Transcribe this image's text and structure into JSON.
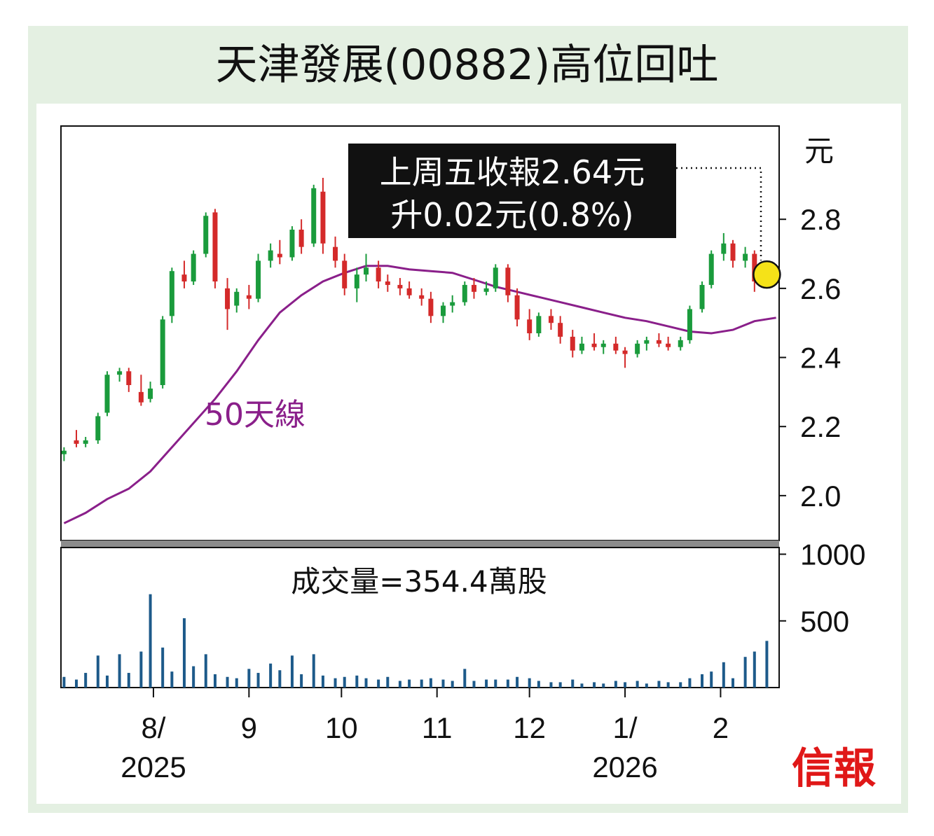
{
  "title": "天津發展(00882)高位回吐",
  "annotation": {
    "line1": "上周五收報2.64元",
    "line2": "升0.02元(0.8%)"
  },
  "ma_label": "50天線",
  "volume_label": "成交量=354.4萬股",
  "price_unit": "元",
  "brand": "信報",
  "colors": {
    "up": "#1a9b3c",
    "down": "#d42a2a",
    "ma": "#8a1f8a",
    "volume": "#1d5a8a",
    "highlight": "#f5e218",
    "background": "#e4f0e2"
  },
  "chart_data": [
    {
      "type": "candlestick",
      "ylabel": "元",
      "yticks": [
        "2.0",
        "2.2",
        "2.4",
        "2.6",
        "2.8"
      ],
      "ylim": [
        1.87,
        3.07
      ],
      "last_close": 2.64,
      "series": [
        {
          "name": "50天線",
          "points": [
            [
              "2025-07-03",
              1.92
            ],
            [
              "2025-07-10",
              1.95
            ],
            [
              "2025-07-17",
              1.99
            ],
            [
              "2025-07-24",
              2.02
            ],
            [
              "2025-07-31",
              2.07
            ],
            [
              "2025-08-07",
              2.14
            ],
            [
              "2025-08-14",
              2.21
            ],
            [
              "2025-08-21",
              2.28
            ],
            [
              "2025-08-28",
              2.36
            ],
            [
              "2025-09-04",
              2.45
            ],
            [
              "2025-09-11",
              2.53
            ],
            [
              "2025-09-18",
              2.58
            ],
            [
              "2025-09-25",
              2.62
            ],
            [
              "2025-10-02",
              2.645
            ],
            [
              "2025-10-09",
              2.665
            ],
            [
              "2025-10-16",
              2.665
            ],
            [
              "2025-10-23",
              2.655
            ],
            [
              "2025-10-30",
              2.65
            ],
            [
              "2025-11-06",
              2.645
            ],
            [
              "2025-11-13",
              2.625
            ],
            [
              "2025-11-20",
              2.605
            ],
            [
              "2025-11-27",
              2.59
            ],
            [
              "2025-12-04",
              2.575
            ],
            [
              "2025-12-11",
              2.56
            ],
            [
              "2025-12-18",
              2.545
            ],
            [
              "2025-12-25",
              2.53
            ],
            [
              "2026-01-01",
              2.515
            ],
            [
              "2026-01-08",
              2.505
            ],
            [
              "2026-01-15",
              2.49
            ],
            [
              "2026-01-22",
              2.475
            ],
            [
              "2026-01-29",
              2.47
            ],
            [
              "2026-02-05",
              2.48
            ],
            [
              "2026-02-12",
              2.505
            ],
            [
              "2026-02-19",
              2.515
            ]
          ]
        },
        {
          "name": "price",
          "candles": [
            [
              "2025-07-03",
              2.12,
              2.14,
              2.1,
              2.13
            ],
            [
              "2025-07-07",
              2.16,
              2.19,
              2.14,
              2.15
            ],
            [
              "2025-07-10",
              2.15,
              2.17,
              2.14,
              2.16
            ],
            [
              "2025-07-14",
              2.16,
              2.24,
              2.15,
              2.23
            ],
            [
              "2025-07-17",
              2.24,
              2.36,
              2.23,
              2.35
            ],
            [
              "2025-07-21",
              2.35,
              2.37,
              2.33,
              2.36
            ],
            [
              "2025-07-24",
              2.36,
              2.37,
              2.3,
              2.32
            ],
            [
              "2025-07-28",
              2.3,
              2.35,
              2.26,
              2.27
            ],
            [
              "2025-07-31",
              2.28,
              2.33,
              2.27,
              2.31
            ],
            [
              "2025-08-04",
              2.32,
              2.52,
              2.31,
              2.51
            ],
            [
              "2025-08-07",
              2.52,
              2.66,
              2.5,
              2.65
            ],
            [
              "2025-08-11",
              2.64,
              2.68,
              2.6,
              2.62
            ],
            [
              "2025-08-14",
              2.62,
              2.71,
              2.61,
              2.7
            ],
            [
              "2025-08-18",
              2.7,
              2.82,
              2.69,
              2.81
            ],
            [
              "2025-08-21",
              2.82,
              2.83,
              2.6,
              2.62
            ],
            [
              "2025-08-25",
              2.6,
              2.63,
              2.48,
              2.54
            ],
            [
              "2025-08-28",
              2.55,
              2.6,
              2.53,
              2.59
            ],
            [
              "2025-09-01",
              2.58,
              2.61,
              2.54,
              2.57
            ],
            [
              "2025-09-04",
              2.57,
              2.7,
              2.56,
              2.68
            ],
            [
              "2025-09-08",
              2.68,
              2.73,
              2.66,
              2.71
            ],
            [
              "2025-09-11",
              2.7,
              2.74,
              2.67,
              2.69
            ],
            [
              "2025-09-15",
              2.69,
              2.78,
              2.68,
              2.77
            ],
            [
              "2025-09-18",
              2.77,
              2.8,
              2.7,
              2.72
            ],
            [
              "2025-09-22",
              2.73,
              2.9,
              2.72,
              2.89
            ],
            [
              "2025-09-25",
              2.88,
              2.92,
              2.7,
              2.73
            ],
            [
              "2025-09-29",
              2.72,
              2.75,
              2.66,
              2.68
            ],
            [
              "2025-10-02",
              2.68,
              2.7,
              2.58,
              2.6
            ],
            [
              "2025-10-06",
              2.6,
              2.66,
              2.56,
              2.64
            ],
            [
              "2025-10-09",
              2.64,
              2.7,
              2.62,
              2.66
            ],
            [
              "2025-10-13",
              2.66,
              2.68,
              2.6,
              2.62
            ],
            [
              "2025-10-16",
              2.62,
              2.64,
              2.59,
              2.61
            ],
            [
              "2025-10-20",
              2.61,
              2.63,
              2.58,
              2.6
            ],
            [
              "2025-10-23",
              2.6,
              2.62,
              2.57,
              2.58
            ],
            [
              "2025-10-27",
              2.58,
              2.6,
              2.55,
              2.57
            ],
            [
              "2025-10-30",
              2.57,
              2.59,
              2.5,
              2.52
            ],
            [
              "2025-11-03",
              2.52,
              2.56,
              2.5,
              2.55
            ],
            [
              "2025-11-06",
              2.55,
              2.58,
              2.53,
              2.56
            ],
            [
              "2025-11-10",
              2.56,
              2.62,
              2.55,
              2.61
            ],
            [
              "2025-11-13",
              2.61,
              2.63,
              2.57,
              2.59
            ],
            [
              "2025-11-17",
              2.59,
              2.62,
              2.58,
              2.6
            ],
            [
              "2025-11-20",
              2.6,
              2.67,
              2.59,
              2.66
            ],
            [
              "2025-11-24",
              2.66,
              2.67,
              2.56,
              2.58
            ],
            [
              "2025-11-27",
              2.58,
              2.6,
              2.49,
              2.51
            ],
            [
              "2025-12-01",
              2.51,
              2.54,
              2.45,
              2.47
            ],
            [
              "2025-12-04",
              2.47,
              2.53,
              2.46,
              2.52
            ],
            [
              "2025-12-08",
              2.52,
              2.54,
              2.48,
              2.5
            ],
            [
              "2025-12-11",
              2.5,
              2.52,
              2.44,
              2.46
            ],
            [
              "2025-12-15",
              2.46,
              2.48,
              2.4,
              2.42
            ],
            [
              "2025-12-18",
              2.42,
              2.46,
              2.41,
              2.44
            ],
            [
              "2025-12-22",
              2.44,
              2.47,
              2.42,
              2.43
            ],
            [
              "2025-12-25",
              2.43,
              2.45,
              2.41,
              2.44
            ],
            [
              "2025-12-29",
              2.44,
              2.46,
              2.41,
              2.42
            ],
            [
              "2026-01-01",
              2.42,
              2.43,
              2.37,
              2.41
            ],
            [
              "2026-01-05",
              2.41,
              2.45,
              2.4,
              2.44
            ],
            [
              "2026-01-08",
              2.44,
              2.46,
              2.42,
              2.45
            ],
            [
              "2026-01-12",
              2.45,
              2.47,
              2.43,
              2.44
            ],
            [
              "2026-01-15",
              2.44,
              2.46,
              2.42,
              2.43
            ],
            [
              "2026-01-19",
              2.43,
              2.46,
              2.42,
              2.45
            ],
            [
              "2026-01-22",
              2.45,
              2.55,
              2.44,
              2.54
            ],
            [
              "2026-01-26",
              2.54,
              2.62,
              2.53,
              2.61
            ],
            [
              "2026-01-29",
              2.61,
              2.71,
              2.6,
              2.7
            ],
            [
              "2026-02-02",
              2.7,
              2.76,
              2.68,
              2.73
            ],
            [
              "2026-02-05",
              2.73,
              2.74,
              2.66,
              2.68
            ],
            [
              "2026-02-09",
              2.68,
              2.72,
              2.66,
              2.7
            ],
            [
              "2026-02-12",
              2.7,
              2.71,
              2.59,
              2.62
            ],
            [
              "2026-02-16",
              2.62,
              2.66,
              2.61,
              2.64
            ]
          ]
        }
      ]
    },
    {
      "type": "bar",
      "title": "成交量=354.4萬股",
      "yticks": [
        "500",
        "1000"
      ],
      "ylim": [
        0,
        1050
      ],
      "last_volume": 354.4,
      "x": [
        "2025-07-03",
        "2025-07-07",
        "2025-07-10",
        "2025-07-14",
        "2025-07-17",
        "2025-07-21",
        "2025-07-24",
        "2025-07-28",
        "2025-07-31",
        "2025-08-04",
        "2025-08-07",
        "2025-08-11",
        "2025-08-14",
        "2025-08-18",
        "2025-08-21",
        "2025-08-25",
        "2025-08-28",
        "2025-09-01",
        "2025-09-04",
        "2025-09-08",
        "2025-09-11",
        "2025-09-15",
        "2025-09-18",
        "2025-09-22",
        "2025-09-25",
        "2025-09-29",
        "2025-10-02",
        "2025-10-06",
        "2025-10-09",
        "2025-10-13",
        "2025-10-16",
        "2025-10-20",
        "2025-10-23",
        "2025-10-27",
        "2025-10-30",
        "2025-11-03",
        "2025-11-06",
        "2025-11-10",
        "2025-11-13",
        "2025-11-17",
        "2025-11-20",
        "2025-11-24",
        "2025-11-27",
        "2025-12-01",
        "2025-12-04",
        "2025-12-08",
        "2025-12-11",
        "2025-12-15",
        "2025-12-18",
        "2025-12-22",
        "2025-12-25",
        "2025-12-29",
        "2026-01-01",
        "2026-01-05",
        "2026-01-08",
        "2026-01-12",
        "2026-01-15",
        "2026-01-19",
        "2026-01-22",
        "2026-01-26",
        "2026-01-29",
        "2026-02-02",
        "2026-02-05",
        "2026-02-09",
        "2026-02-12",
        "2026-02-16"
      ],
      "values": [
        80,
        60,
        110,
        240,
        90,
        250,
        110,
        270,
        700,
        300,
        120,
        520,
        160,
        250,
        100,
        80,
        70,
        140,
        110,
        180,
        130,
        240,
        100,
        250,
        90,
        70,
        80,
        90,
        70,
        60,
        80,
        50,
        60,
        60,
        70,
        60,
        50,
        140,
        50,
        60,
        60,
        60,
        80,
        70,
        50,
        40,
        40,
        60,
        30,
        40,
        30,
        50,
        40,
        50,
        30,
        50,
        40,
        40,
        70,
        100,
        120,
        190,
        70,
        230,
        270,
        350
      ]
    }
  ],
  "x_axis": {
    "ticks": [
      {
        "label": "8/",
        "date": "2025-08-01"
      },
      {
        "label": "9",
        "date": "2025-09-01"
      },
      {
        "label": "10",
        "date": "2025-10-01"
      },
      {
        "label": "11",
        "date": "2025-11-01"
      },
      {
        "label": "12",
        "date": "2025-12-01"
      },
      {
        "label": "1/",
        "date": "2026-01-01"
      },
      {
        "label": "2",
        "date": "2026-02-01"
      }
    ],
    "years": [
      {
        "label": "2025",
        "date": "2025-08-01"
      },
      {
        "label": "2026",
        "date": "2026-01-01"
      }
    ]
  }
}
